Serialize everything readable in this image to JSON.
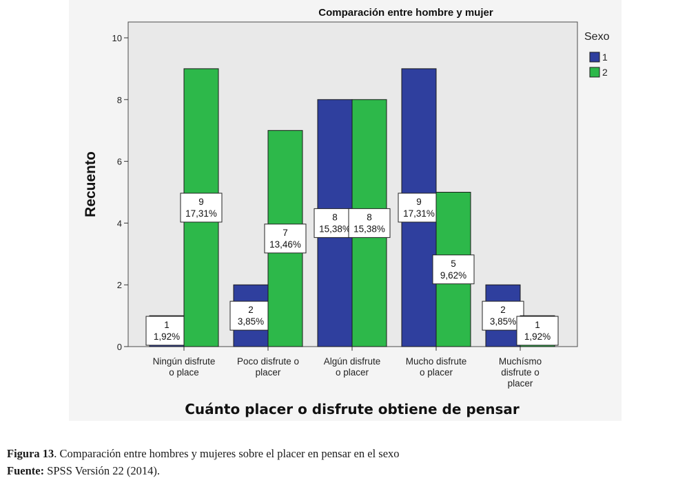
{
  "chart_data": {
    "type": "bar",
    "title": "Comparación entre hombre y mujer",
    "xlabel": "Cuánto placer o disfrute obtiene de pensar",
    "ylabel": "Recuento",
    "ylim": [
      0,
      10
    ],
    "yticks": [
      0,
      2,
      4,
      6,
      8,
      10
    ],
    "grid": false,
    "legend_position": "top-right",
    "legend_title": "Sexo",
    "categories": [
      [
        "Ningún disfrute",
        "o place"
      ],
      [
        "Poco disfrute o",
        "placer"
      ],
      [
        "Algún  disfrute",
        "o placer"
      ],
      [
        "Mucho disfrute",
        "o placer"
      ],
      [
        "Muchísmo",
        "disfrute o",
        "placer"
      ]
    ],
    "series": [
      {
        "name": "1",
        "color": "#2f3f9e",
        "values": [
          1,
          2,
          8,
          9,
          2
        ],
        "labels": [
          [
            "1",
            "1,92%"
          ],
          [
            "2",
            "3,85%"
          ],
          [
            "8",
            "15,38%"
          ],
          [
            "9",
            "17,31%"
          ],
          [
            "2",
            "3,85%"
          ]
        ]
      },
      {
        "name": "2",
        "color": "#2db84a",
        "values": [
          9,
          7,
          8,
          5,
          1
        ],
        "labels": [
          [
            "9",
            "17,31%"
          ],
          [
            "7",
            "13,46%"
          ],
          [
            "8",
            "15,38%"
          ],
          [
            "5",
            "9,62%"
          ],
          [
            "1",
            "1,92%"
          ]
        ]
      }
    ]
  },
  "caption": {
    "figure_label": "Figura 13",
    "figure_text": ". Comparación entre hombres y mujeres sobre el placer en pensar en el sexo",
    "source_label": "Fuente:",
    "source_text": " SPSS Versión 22 (2014)."
  }
}
